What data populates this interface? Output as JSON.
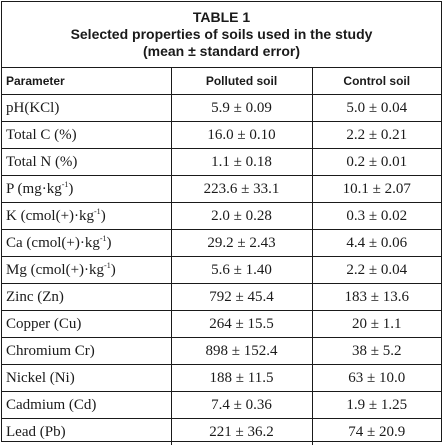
{
  "table": {
    "title": "TABLE 1",
    "subtitle_line1": "Selected properties of soils used in the study",
    "subtitle_line2": "(mean ± standard error)",
    "headers": [
      "Parameter",
      "Polluted soil",
      "Control soil"
    ],
    "rows": [
      {
        "parameter": "pH(KCl)",
        "polluted": "5.9 ± 0.09",
        "control": "5.0 ± 0.04"
      },
      {
        "parameter": "Total C (%)",
        "polluted": "16.0 ± 0.10",
        "control": "2.2 ± 0.21"
      },
      {
        "parameter": "Total N (%)",
        "polluted": "1.1 ± 0.18",
        "control": "0.2 ± 0.01"
      },
      {
        "parameter": "P (mg·kg",
        "sup": "-1",
        "close": ")",
        "polluted": "223.6 ± 33.1",
        "control": "10.1 ± 2.07"
      },
      {
        "parameter": "K (cmol(+)·kg",
        "sup": "-1",
        "close": ")",
        "polluted": "2.0 ± 0.28",
        "control": "0.3 ± 0.02"
      },
      {
        "parameter": "Ca (cmol(+)·kg",
        "sup": "-1",
        "close": ")",
        "polluted": "29.2 ± 2.43",
        "control": "4.4 ± 0.06"
      },
      {
        "parameter": "Mg (cmol(+)·kg",
        "sup": "-1",
        "close": ")",
        "polluted": "5.6 ± 1.40",
        "control": "2.2 ± 0.04"
      },
      {
        "parameter": "Zinc (Zn)",
        "polluted": "792 ± 45.4",
        "control": "183 ± 13.6"
      },
      {
        "parameter": "Copper (Cu)",
        "polluted": "264 ± 15.5",
        "control": "20 ± 1.1"
      },
      {
        "parameter": "Chromium Cr)",
        "polluted": "898 ± 152.4",
        "control": "38 ± 5.2"
      },
      {
        "parameter": "Nickel (Ni)",
        "polluted": "188 ± 11.5",
        "control": "63 ± 10.0"
      },
      {
        "parameter": "Cadmium (Cd)",
        "polluted": "7.4 ± 0.36",
        "control": "1.9 ± 1.25"
      },
      {
        "parameter": "Lead (Pb)",
        "polluted": "221 ± 36.2",
        "control": "74 ± 20.9"
      }
    ]
  }
}
